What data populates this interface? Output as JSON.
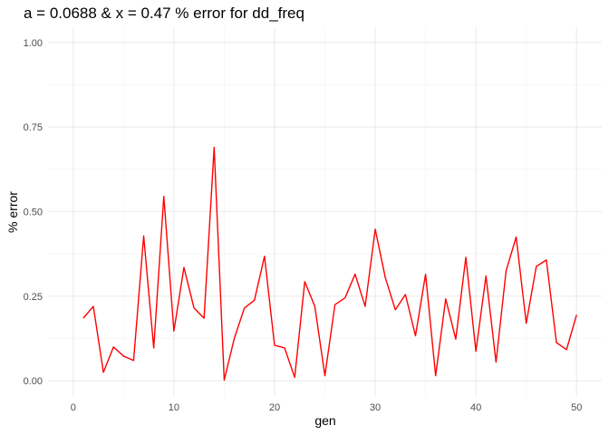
{
  "chart_data": {
    "type": "line",
    "title": "a = 0.0688 & x = 0.47 % error for dd_freq",
    "xlabel": "gen",
    "ylabel": "% error",
    "xlim": [
      -2.5,
      52.5
    ],
    "ylim": [
      -0.045,
      1.045
    ],
    "x_ticks": [
      0,
      10,
      20,
      30,
      40,
      50
    ],
    "x_tick_labels": [
      "0",
      "10",
      "20",
      "30",
      "40",
      "50"
    ],
    "y_ticks": [
      0,
      0.25,
      0.5,
      0.75,
      1.0
    ],
    "y_tick_labels": [
      "0.00",
      "0.25",
      "0.50",
      "0.75",
      "1.00"
    ],
    "grid": true,
    "legend": "none",
    "series": [
      {
        "color": "#ff0000",
        "x": [
          1,
          2,
          3,
          4,
          5,
          6,
          7,
          8,
          9,
          10,
          11,
          12,
          13,
          14,
          15,
          16,
          17,
          18,
          19,
          20,
          21,
          22,
          23,
          24,
          25,
          26,
          27,
          28,
          29,
          30,
          31,
          32,
          33,
          34,
          35,
          36,
          37,
          38,
          39,
          40,
          41,
          42,
          43,
          44,
          45,
          46,
          47,
          48,
          49,
          50
        ],
        "y": [
          0.185,
          0.22,
          0.025,
          0.1,
          0.073,
          0.06,
          0.428,
          0.097,
          0.545,
          0.147,
          0.335,
          0.215,
          0.185,
          0.69,
          0.002,
          0.125,
          0.215,
          0.238,
          0.368,
          0.105,
          0.097,
          0.01,
          0.293,
          0.22,
          0.015,
          0.225,
          0.245,
          0.315,
          0.22,
          0.448,
          0.305,
          0.21,
          0.255,
          0.133,
          0.315,
          0.015,
          0.242,
          0.123,
          0.365,
          0.087,
          0.31,
          0.055,
          0.325,
          0.425,
          0.17,
          0.338,
          0.357,
          0.113,
          0.092,
          0.195
        ]
      }
    ]
  }
}
